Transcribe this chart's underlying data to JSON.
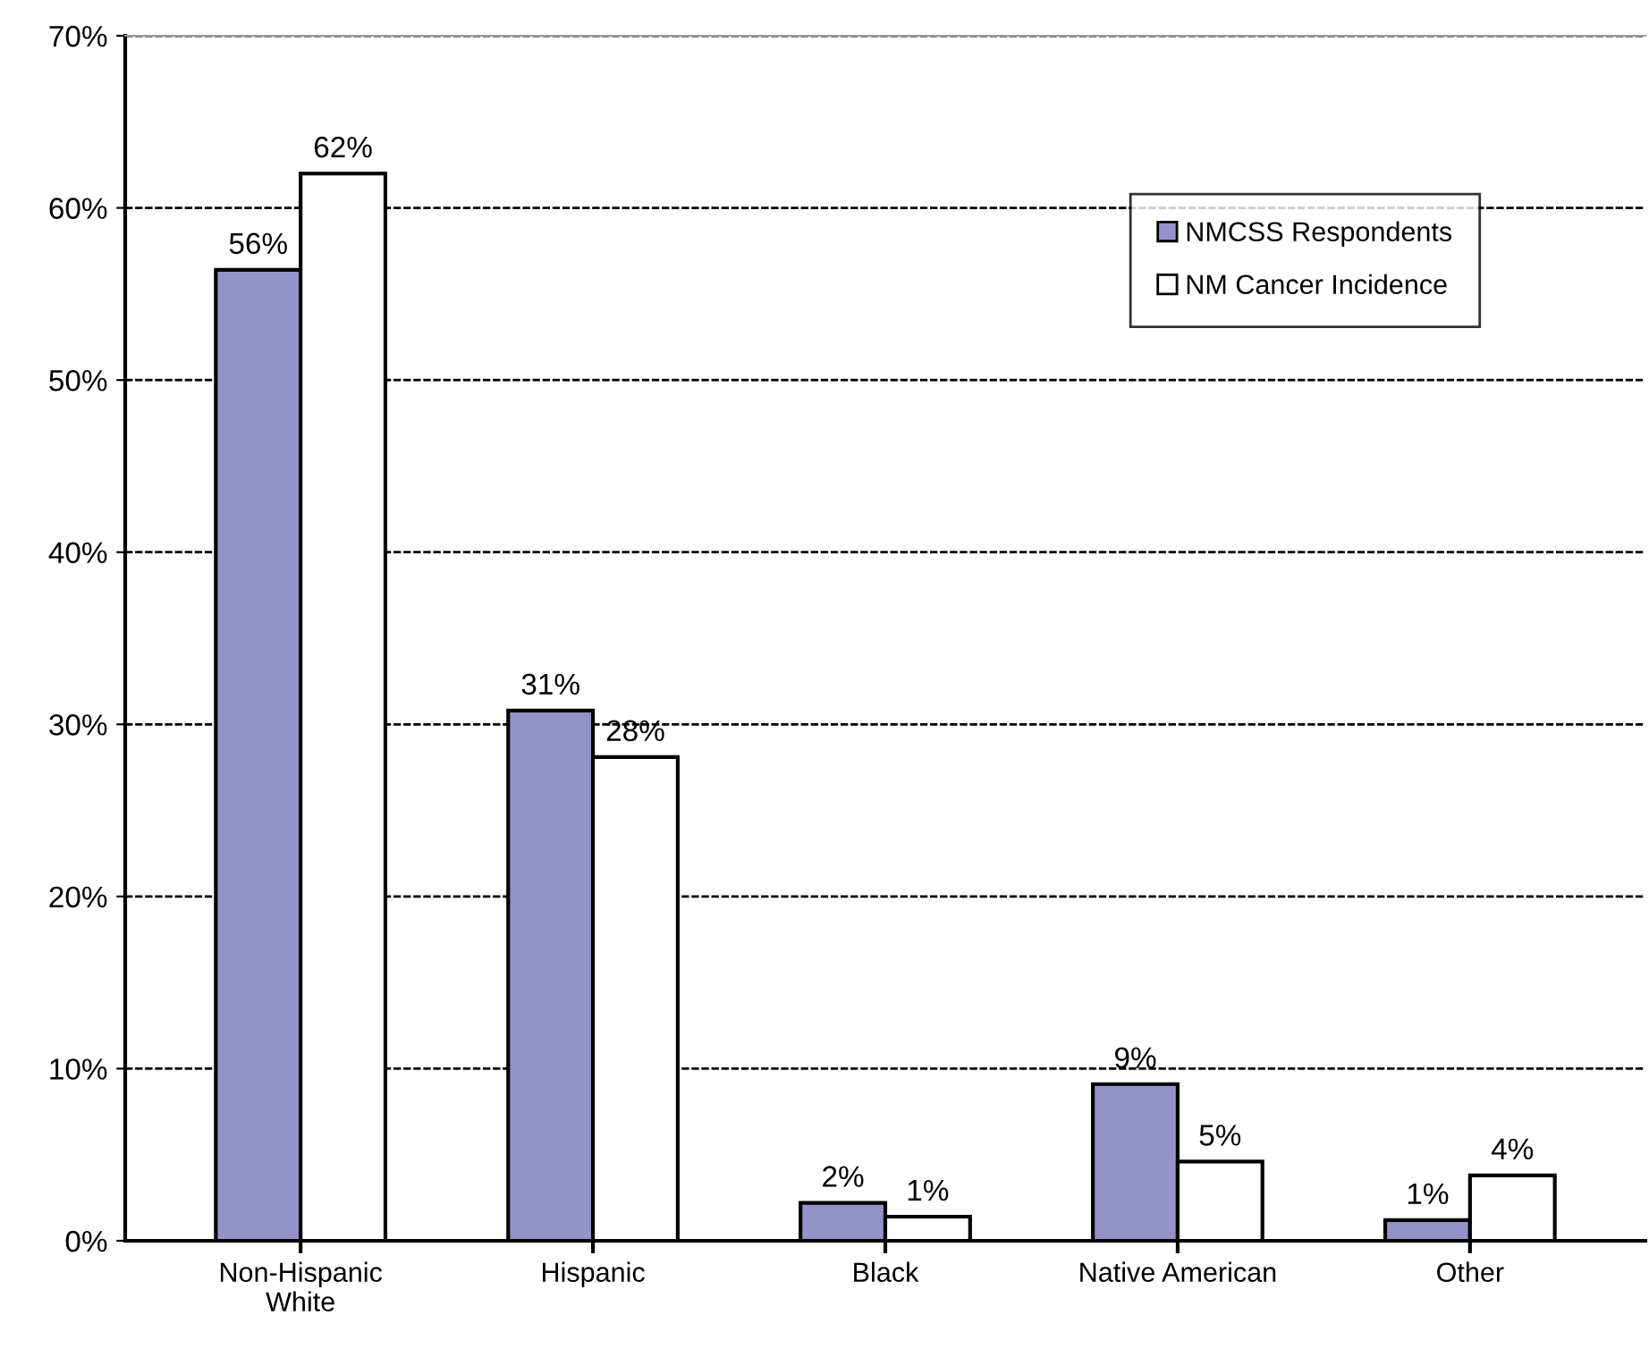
{
  "chart_data": {
    "type": "bar",
    "categories": [
      "Non-Hispanic\nWhite",
      "Hispanic",
      "Black",
      "Native American",
      "Other"
    ],
    "series": [
      {
        "name": "NMCSS Respondents",
        "color": "#9393c8",
        "values": [
          56.4,
          30.8,
          2.2,
          9.1,
          1.2
        ],
        "value_labels": [
          "56%",
          "31%",
          "2%",
          "9%",
          "1%"
        ]
      },
      {
        "name": "NM Cancer Incidence",
        "color": "#ffffff",
        "values": [
          62.0,
          28.1,
          1.4,
          4.6,
          3.8
        ],
        "value_labels": [
          "62%",
          "28%",
          "1%",
          "5%",
          "4%"
        ]
      }
    ],
    "ylim": [
      0,
      70
    ],
    "yticks": [
      {
        "value": 0,
        "label": "0%"
      },
      {
        "value": 10,
        "label": "10%"
      },
      {
        "value": 20,
        "label": "20%"
      },
      {
        "value": 30,
        "label": "30%"
      },
      {
        "value": 40,
        "label": "40%"
      },
      {
        "value": 50,
        "label": "50%"
      },
      {
        "value": 60,
        "label": "60%"
      },
      {
        "value": 70,
        "label": "70%"
      }
    ],
    "grid": "y",
    "legend": "top right"
  }
}
